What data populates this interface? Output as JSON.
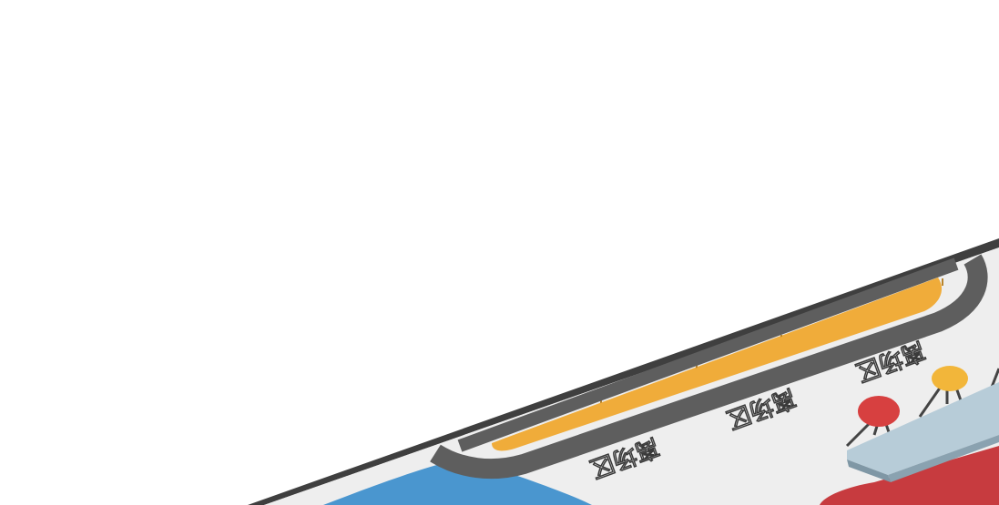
{
  "scene": {
    "track_labels": [
      "离场区",
      "离场区",
      "离场区"
    ],
    "colors": {
      "background": "#ffffff",
      "floor": "#eeeeee",
      "platform_edge": "#3f3f3f",
      "track": "#5e5e5e",
      "orange_pit": "#f0ac3a",
      "blue_zone": "#4a96cf",
      "red_stool": "#d74040",
      "yellow_stool": "#f2b63a",
      "light_blue_block": "#b7ccd8",
      "red_block": "#c73b3f",
      "stool_leg": "#444444"
    }
  }
}
